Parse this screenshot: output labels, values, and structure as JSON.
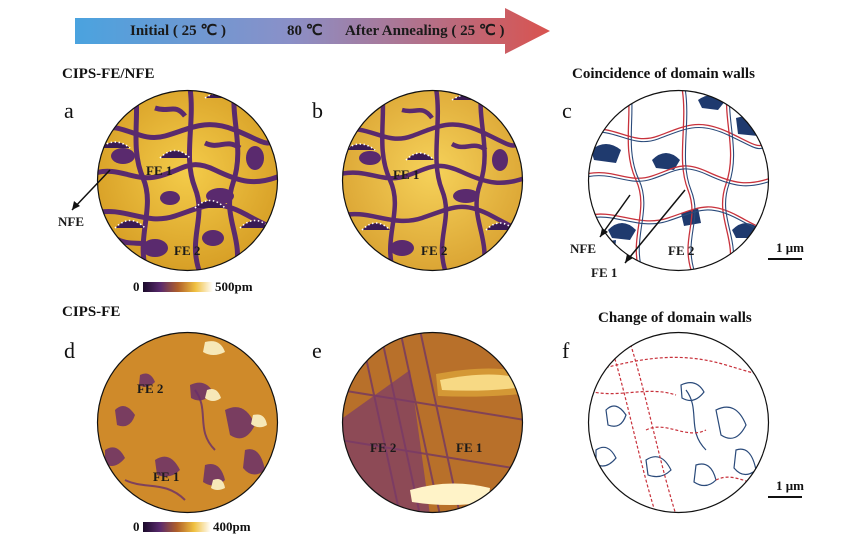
{
  "arrow": {
    "initial": "Initial ( 25 ℃ )",
    "mid": "80 ℃",
    "after": "After Annealing ( 25 ℃ )"
  },
  "rows": {
    "top_title": "CIPS-FE/NFE",
    "bottom_title": "CIPS-FE"
  },
  "panels": {
    "a": "a",
    "b": "b",
    "c": "c",
    "d": "d",
    "e": "e",
    "f": "f"
  },
  "column_titles": {
    "c": "Coincidence of domain walls",
    "f": "Change of domain walls"
  },
  "annotations": {
    "fe1": "FE 1",
    "fe2": "FE 2",
    "nfe": "NFE"
  },
  "colorbars": {
    "top_min": "0",
    "top_max": "500pm",
    "bottom_min": "0",
    "bottom_max": "400pm"
  },
  "scalebar": {
    "label": "1 μm"
  },
  "colors": {
    "arrow_start": "#4aa3df",
    "arrow_end": "#d9534f",
    "domain_dark": "#5a2a6e",
    "domain_bright": "#f0c040",
    "wall_red": "#c8323c",
    "wall_blue": "#2a4a7a",
    "nfe_fill": "#1f3a6e"
  }
}
